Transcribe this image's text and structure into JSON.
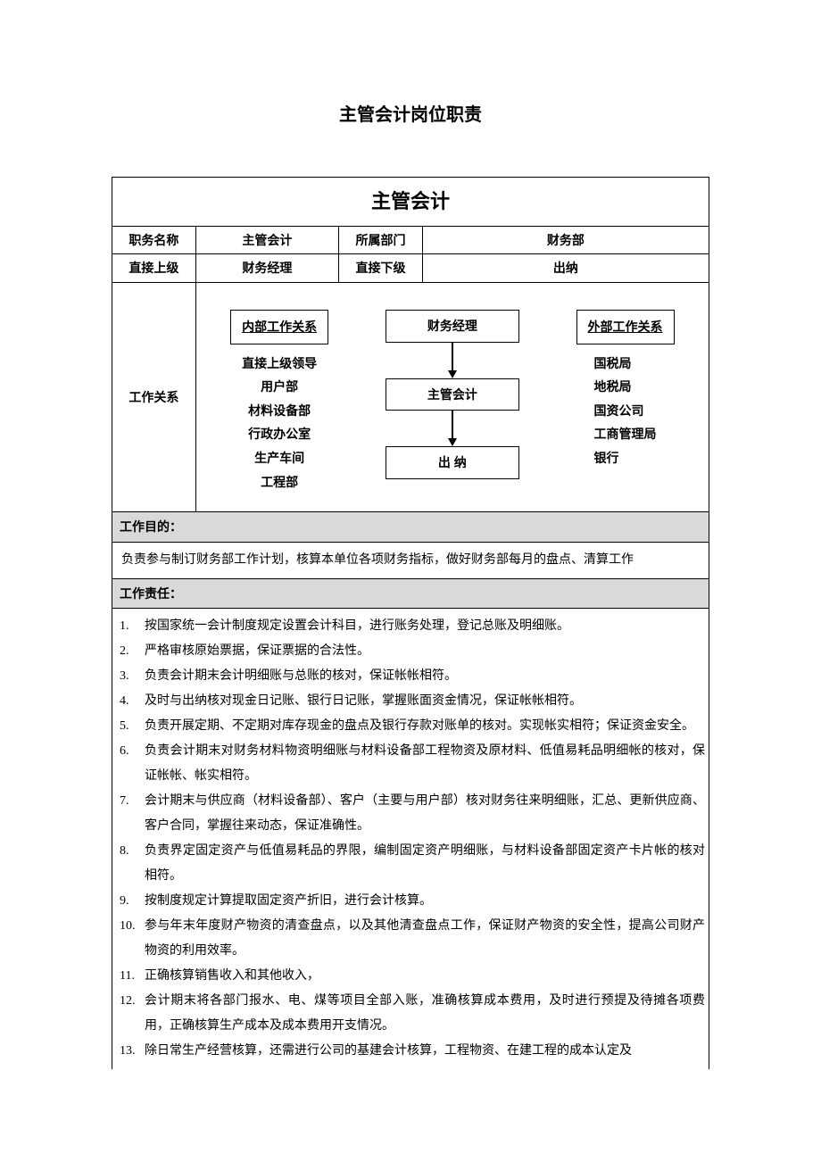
{
  "page_title": "主管会计岗位职责",
  "main_header": "主管会计",
  "colors": {
    "section_bg": "#d9d9d9",
    "border": "#000000",
    "text": "#000000",
    "background": "#ffffff"
  },
  "info": {
    "r1c1_label": "职务名称",
    "r1c1_value": "主管会计",
    "r1c2_label": "所属部门",
    "r1c2_value": "财务部",
    "r2c1_label": "直接上级",
    "r2c1_value": "财务经理",
    "r2c2_label": "直接下级",
    "r2c2_value": "出纳"
  },
  "relations": {
    "label": "工作关系",
    "internal_title": "内部工作关系",
    "internal_items": [
      "直接上级领导",
      "用户部",
      "材料设备部",
      "行政办公室",
      "生产车间",
      "工程部"
    ],
    "external_title": "外部工作关系",
    "external_items": [
      "国税局",
      "地税局",
      "国资公司",
      "工商管理局",
      "银行"
    ],
    "hierarchy": {
      "top": "财务经理",
      "mid": "主管会计",
      "bot": "出 纳"
    }
  },
  "purpose": {
    "header": "工作目的：",
    "text": "负责参与制订财务部工作计划，核算本单位各项财务指标，做好财务部每月的盘点、清算工作"
  },
  "responsibilities": {
    "header": "工作责任：",
    "items": [
      "按国家统一会计制度规定设置会计科目，进行账务处理，登记总账及明细账。",
      "严格审核原始票据，保证票据的合法性。",
      "负责会计期末会计明细账与总账的核对，保证帐帐相符。",
      "及时与出纳核对现金日记账、银行日记账，掌握账面资金情况，保证帐帐相符。",
      "负责开展定期、不定期对库存现金的盘点及银行存款对账单的核对。实现帐实相符；保证资金安全。",
      "负责会计期末对财务材料物资明细账与材料设备部工程物资及原材料、低值易耗品明细帐的核对，保证帐帐、帐实相符。",
      "会计期末与供应商（材料设备部）、客户（主要与用户部）核对财务往来明细账，汇总、更新供应商、客户合同，掌握往来动态，保证准确性。",
      "负责界定固定资产与低值易耗品的界限，编制固定资产明细账，与材料设备部固定资产卡片帐的核对相符。",
      "按制度规定计算提取固定资产折旧，进行会计核算。",
      "参与年末年度财产物资的清查盘点，以及其他清查盘点工作，保证财产物资的安全性，提高公司财产物资的利用效率。",
      "正确核算销售收入和其他收入，",
      "会计期末将各部门报水、电、煤等项目全部入账，准确核算成本费用，及时进行预提及待摊各项费用，正确核算生产成本及成本费用开支情况。",
      "除日常生产经营核算，还需进行公司的基建会计核算，工程物资、在建工程的成本认定及"
    ]
  }
}
